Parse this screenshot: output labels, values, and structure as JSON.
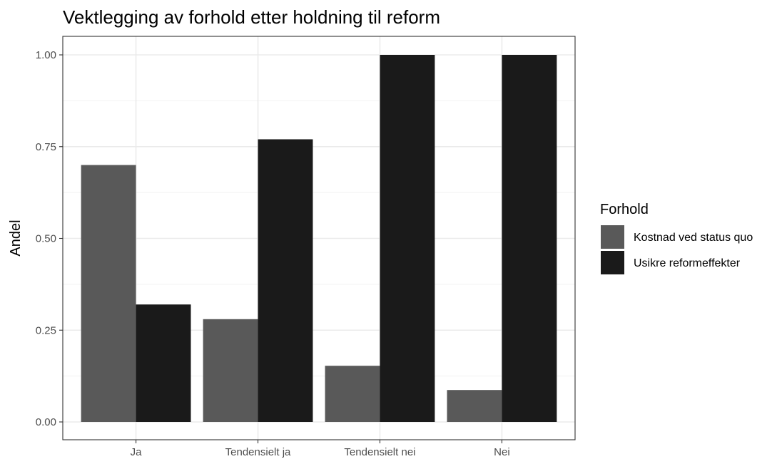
{
  "chart_data": {
    "type": "bar",
    "title": "Vektlegging av forhold etter holdning til reform",
    "xlabel": "",
    "ylabel": "Andel",
    "categories": [
      "Ja",
      "Tendensielt ja",
      "Tendensielt nei",
      "Nei"
    ],
    "series": [
      {
        "name": "Kostnad ved status quo",
        "color": "#595959",
        "values": [
          0.7,
          0.28,
          0.153,
          0.087
        ]
      },
      {
        "name": "Usikre reformeffekter",
        "color": "#1a1a1a",
        "values": [
          0.32,
          0.77,
          1.0,
          1.0
        ]
      }
    ],
    "ylim": [
      0,
      1.05
    ],
    "yticks": [
      "0.00",
      "0.25",
      "0.50",
      "0.75",
      "1.00"
    ],
    "legend": {
      "title": "Forhold",
      "position": "right"
    },
    "grid": true,
    "theme": "bw"
  }
}
